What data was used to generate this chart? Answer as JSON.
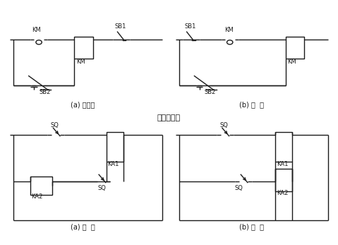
{
  "title": "电器连接图",
  "background_color": "#ffffff",
  "line_color": "#1a1a1a",
  "label_a1": "(a) 不合理",
  "label_b1": "(b) 合  理",
  "label_a2": "(a) 错  误",
  "label_b2": "(b) 正  确",
  "lw": 1.0
}
